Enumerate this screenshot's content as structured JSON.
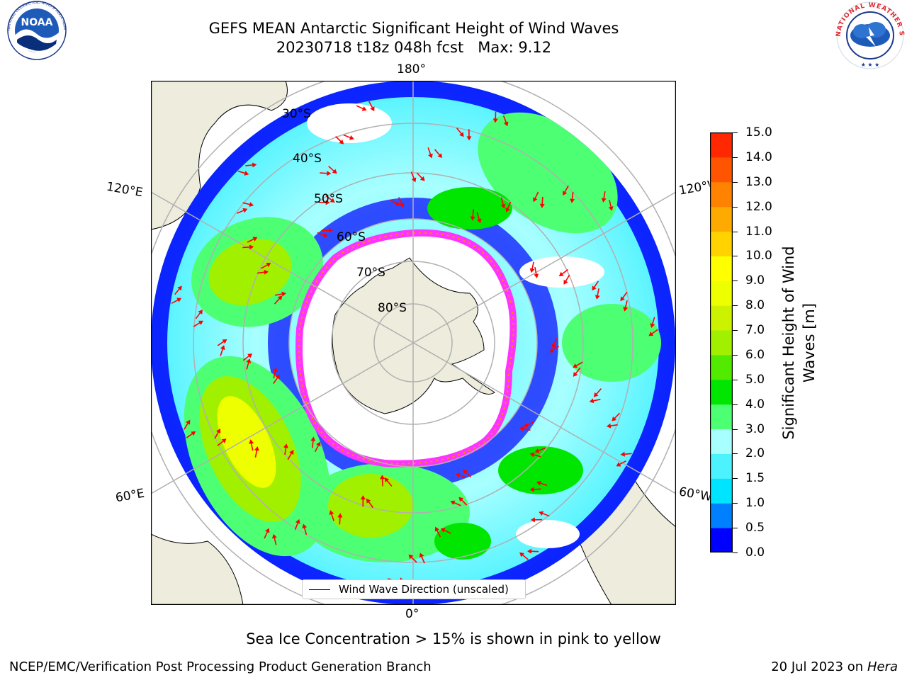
{
  "header": {
    "title_line1": "GEFS MEAN Antarctic Significant Height of Wind Waves",
    "title_line2": "20230718 t18z 048h fcst   Max: 9.12"
  },
  "logos": {
    "left": {
      "icon": "noaa-logo",
      "text": "NOAA",
      "ring_text": "NATIONAL OCEANIC AND ATMOSPHERIC ADMINISTRATION · U.S. DEPARTMENT OF COMMERCE"
    },
    "right": {
      "icon": "national-weather-service-logo",
      "ring_text": "NATIONAL WEATHER SERVICE"
    }
  },
  "map": {
    "projection": "south-polar-stereographic",
    "longitude_labels": {
      "top": "180°",
      "bottom": "0°",
      "upper_left": "120°E",
      "upper_right": "120°W",
      "lower_left": "60°E",
      "lower_right": "60°W"
    },
    "latitude_labels": [
      "30°S",
      "40°S",
      "50°S",
      "60°S",
      "70°S",
      "80°S"
    ],
    "legend_label": "Wind Wave Direction (unscaled)",
    "arrow_color": "#ff0000",
    "land_color": "#eeecdc",
    "sea_ice_colors": [
      "#ff33ff",
      "#ff8800",
      "#ffff00"
    ]
  },
  "colorbar": {
    "label": "Significant Height of Wind Waves [m]",
    "ticks": [
      "0.0",
      "0.5",
      "1.0",
      "1.5",
      "2.0",
      "3.0",
      "4.0",
      "5.0",
      "6.0",
      "7.0",
      "8.0",
      "9.0",
      "10.0",
      "11.0",
      "12.0",
      "13.0",
      "14.0",
      "15.0"
    ],
    "colors": [
      "#0000ff",
      "#0080ff",
      "#00e5ff",
      "#4df2ff",
      "#a8ffff",
      "#4dff73",
      "#00e600",
      "#52eb00",
      "#a0f000",
      "#ccf200",
      "#eeff00",
      "#ffff00",
      "#ffd200",
      "#ffaa00",
      "#ff8200",
      "#ff5500",
      "#ff2800"
    ]
  },
  "captions": {
    "sea_ice": "Sea Ice Concentration > 15% is shown in pink to yellow",
    "footer_left": "NCEP/EMC/Verification Post Processing Product Generation Branch",
    "footer_date": "20 Jul 2023 on",
    "footer_machine": "Hera"
  }
}
